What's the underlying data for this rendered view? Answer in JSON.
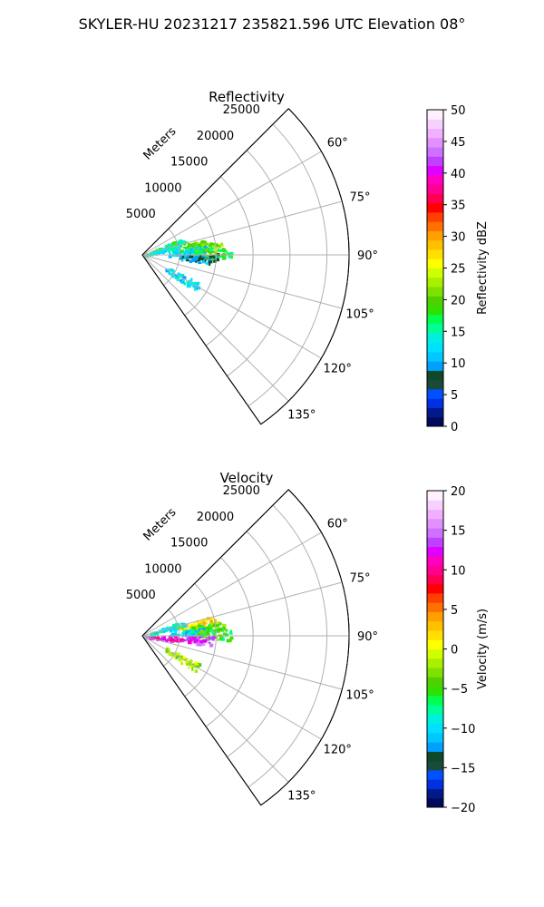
{
  "figure_title": "SKYLER-HU  20231217  235821.596 UTC Elevation 08°",
  "chart_data": [
    {
      "type": "heatmap",
      "title": "Reflectivity",
      "radial_axis_label": "Meters",
      "radial_ticks": [
        5000,
        10000,
        15000,
        20000,
        25000
      ],
      "radial_tick_labels": [
        "5000",
        "10000",
        "15000",
        "20000",
        "25000"
      ],
      "r_max": 28000,
      "azimuth_range_deg": [
        45,
        145
      ],
      "azimuth_ticks": [
        60,
        75,
        90,
        105,
        120,
        135
      ],
      "azimuth_tick_labels": [
        "60°",
        "75°",
        "90°",
        "105°",
        "120°",
        "135°"
      ],
      "grid": true,
      "colorbar": {
        "label": "Reflectivity dBZ",
        "range": [
          0,
          50
        ],
        "ticks": [
          "0",
          "5",
          "10",
          "15",
          "20",
          "25",
          "30",
          "35",
          "40",
          "45",
          "50"
        ],
        "colors": [
          "#000a5a",
          "#001a8c",
          "#0030e0",
          "#0050ff",
          "#1a4a3a",
          "#0e4a2a",
          "#00a0ff",
          "#00c8ff",
          "#00e0ff",
          "#00f0e0",
          "#00ff9a",
          "#00ff50",
          "#30e000",
          "#50d000",
          "#80e000",
          "#a8f000",
          "#d0ff00",
          "#ffff00",
          "#ffe000",
          "#ffc000",
          "#ffa000",
          "#ff7000",
          "#ff4000",
          "#ff0000",
          "#ff0050",
          "#ff0090",
          "#ff00c0",
          "#e000ff",
          "#c040ff",
          "#d070ff",
          "#e090ff",
          "#f0b0ff",
          "#f8d0ff",
          "#fff0ff"
        ]
      },
      "echo_clusters": [
        {
          "az": 80,
          "r": 7000,
          "value": 20
        },
        {
          "az": 83,
          "r": 8500,
          "value": 22
        },
        {
          "az": 85,
          "r": 6000,
          "value": 12
        },
        {
          "az": 88,
          "r": 9500,
          "value": 18
        },
        {
          "az": 93,
          "r": 7500,
          "value": 10
        },
        {
          "az": 70,
          "r": 3500,
          "value": 17
        },
        {
          "az": 75,
          "r": 2500,
          "value": 14
        },
        {
          "az": 120,
          "r": 6000,
          "value": 13
        }
      ]
    },
    {
      "type": "heatmap",
      "title": "Velocity",
      "radial_axis_label": "Meters",
      "radial_ticks": [
        5000,
        10000,
        15000,
        20000,
        25000
      ],
      "radial_tick_labels": [
        "5000",
        "10000",
        "15000",
        "20000",
        "25000"
      ],
      "r_max": 28000,
      "azimuth_range_deg": [
        45,
        145
      ],
      "azimuth_ticks": [
        60,
        75,
        90,
        105,
        120,
        135
      ],
      "azimuth_tick_labels": [
        "60°",
        "75°",
        "90°",
        "105°",
        "120°",
        "135°"
      ],
      "grid": true,
      "colorbar": {
        "label": "Velocity (m/s)",
        "range": [
          -20,
          20
        ],
        "ticks": [
          "−20",
          "−15",
          "−10",
          "−5",
          "0",
          "5",
          "10",
          "15",
          "20"
        ],
        "colors": [
          "#000a5a",
          "#001a8c",
          "#0030e0",
          "#0050ff",
          "#1a4a3a",
          "#0e4a2a",
          "#00a0ff",
          "#00c8ff",
          "#00e0ff",
          "#00f0e0",
          "#00ff9a",
          "#00ff50",
          "#30e000",
          "#50d000",
          "#80e000",
          "#a8f000",
          "#d0ff00",
          "#ffff00",
          "#ffe000",
          "#ffc000",
          "#ffa000",
          "#ff7000",
          "#ff4000",
          "#ff0000",
          "#ff0050",
          "#ff0090",
          "#ff00c0",
          "#e000ff",
          "#c040ff",
          "#d070ff",
          "#e090ff",
          "#f0b0ff",
          "#f8d0ff",
          "#fff0ff"
        ]
      },
      "echo_clusters": [
        {
          "az": 78,
          "r": 7500,
          "value": 2
        },
        {
          "az": 83,
          "r": 8500,
          "value": -4
        },
        {
          "az": 86,
          "r": 6000,
          "value": -10
        },
        {
          "az": 88,
          "r": 9500,
          "value": -5
        },
        {
          "az": 93,
          "r": 7000,
          "value": 14
        },
        {
          "az": 95,
          "r": 2500,
          "value": 12
        },
        {
          "az": 72,
          "r": 3500,
          "value": -9
        },
        {
          "az": 120,
          "r": 6000,
          "value": -2
        }
      ]
    }
  ]
}
